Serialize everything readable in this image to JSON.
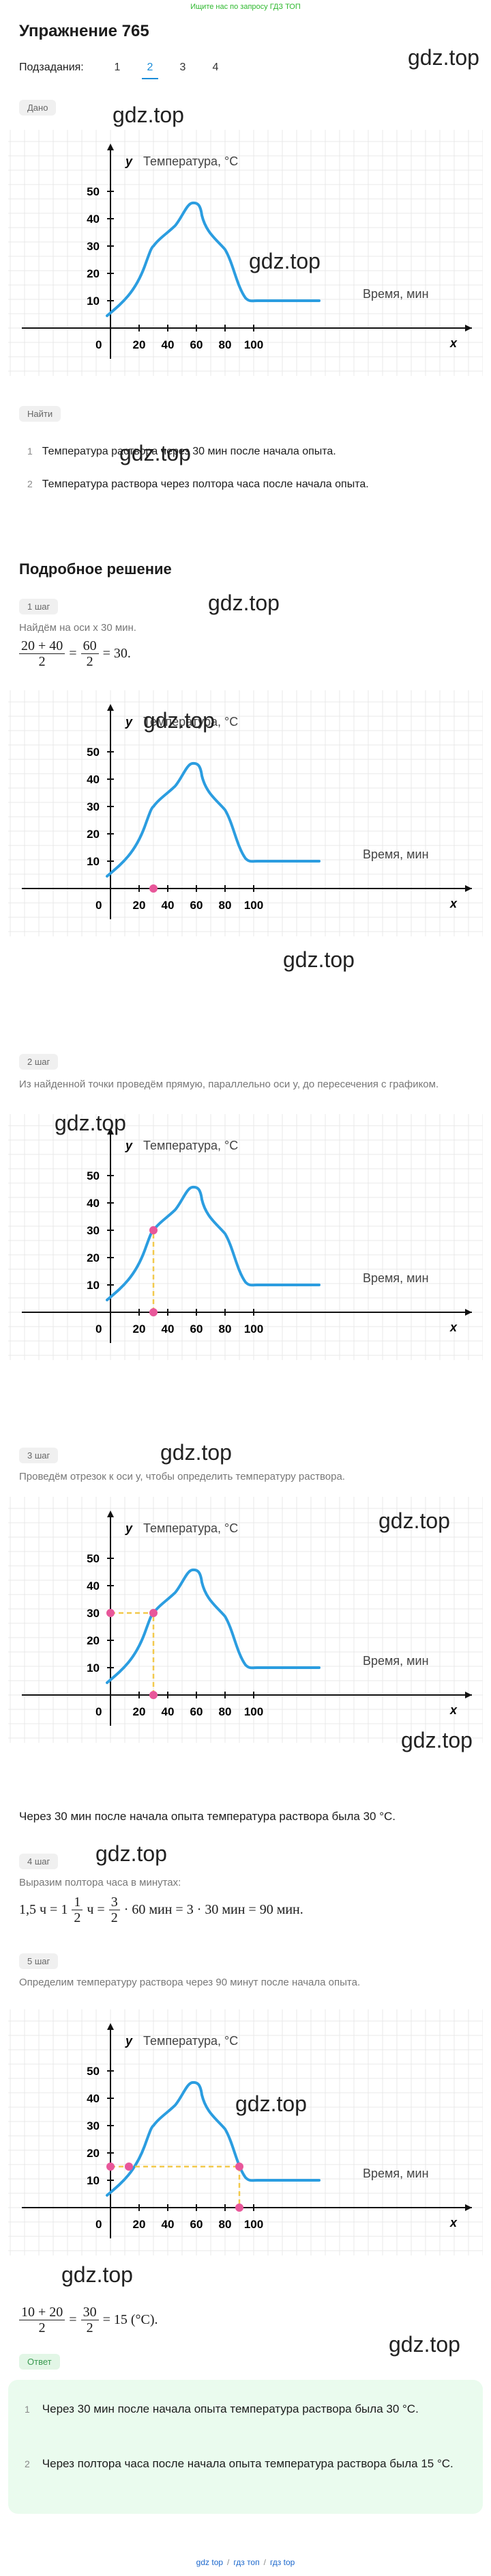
{
  "banner": "Ищите нас по запросу ГДЗ ТОП",
  "header": {
    "title": "Упражнение 765",
    "subtasks_label": "Подзадания:",
    "subtasks": [
      "1",
      "2",
      "3",
      "4"
    ]
  },
  "given": {
    "badge": "Дано"
  },
  "graph": {
    "y_axis": "y",
    "y_title": "Температура, °C",
    "x_axis": "x",
    "x_title": "Время, мин",
    "origin": "0",
    "yticks": [
      "10",
      "20",
      "30",
      "40",
      "50"
    ],
    "xticks": [
      "20",
      "40",
      "60",
      "80",
      "100"
    ]
  },
  "find": {
    "badge": "Найти",
    "items": [
      {
        "num": "1",
        "text": "Температура раствора через 30 мин после начала опыта."
      },
      {
        "num": "2",
        "text": "Температура раствора через полтора часа после начала опыта."
      }
    ]
  },
  "solution": {
    "title": "Подробное решение",
    "steps": [
      {
        "badge": "1 шаг",
        "text": "Найдём на оси x 30 мин.",
        "formula": [
          "20 + 40",
          "2",
          "=",
          "60",
          "2",
          "= 30."
        ]
      },
      {
        "badge": "2 шаг",
        "text": "Из найденной точки проведём прямую, параллельно оси y, до пересечения с графиком."
      },
      {
        "badge": "3 шаг",
        "text": "Проведём отрезок к оси y, чтобы определить температуру раствора.",
        "conclusion": "Через 30 мин после начала опыта температура раствора была 30 °C."
      },
      {
        "badge": "4 шаг",
        "text": "Выразим полтора часа в минутах:",
        "formula": [
          "1,5 ч = 1",
          "1",
          "2",
          "ч =",
          "3",
          "2",
          "· 60 мин = 3 · 30 мин = 90 мин."
        ]
      },
      {
        "badge": "5 шаг",
        "text": "Определим температуру раствора через 90 минут после начала опыта.",
        "formula": [
          "10 + 20",
          "2",
          "=",
          "30",
          "2",
          "= 15 (°C)."
        ]
      }
    ]
  },
  "answer": {
    "badge": "Ответ",
    "items": [
      {
        "num": "1",
        "text": "Через 30 мин после начала опыта температура раствора была 30 °C."
      },
      {
        "num": "2",
        "text": "Через полтора часа после начала опыта температура раствора была 15 °C."
      }
    ]
  },
  "watermarks": [
    "gdz.top",
    "gdz.top",
    "gdz.top",
    "gdz.top",
    "gdz.top",
    "gdz.top",
    "gdz.top",
    "gdz.top",
    "gdz.top",
    "gdz.top",
    "gdz.top",
    "gdz.top",
    "gdz.top",
    "gdz.top",
    "gdz.top"
  ],
  "footer": {
    "links": [
      "gdz top",
      "гдз топ",
      "гдз top"
    ],
    "separator": "/"
  }
}
